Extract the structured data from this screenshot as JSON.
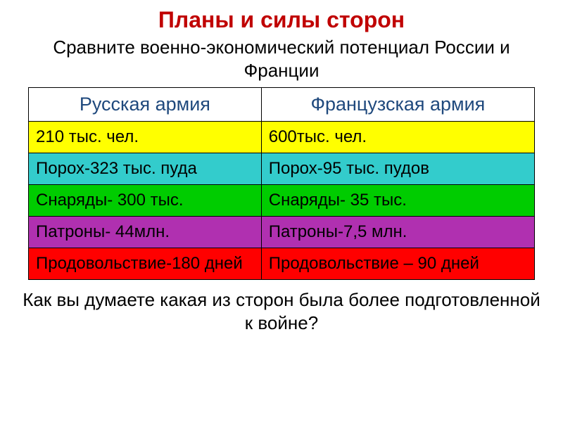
{
  "title": {
    "text": "Планы и силы сторон",
    "color": "#c00000",
    "fontsize": 32
  },
  "subtitle": {
    "text": "Сравните военно-экономический потенциал России и Франции",
    "color": "#000000",
    "fontsize": 26
  },
  "table": {
    "type": "table",
    "columns": 2,
    "col_widths": [
      "46%",
      "54%"
    ],
    "cell_fontsize": 24,
    "header_fontsize": 27,
    "header_color": "#1f497d",
    "border_color": "#000000",
    "rows": [
      {
        "bg": "#ffffff",
        "cells": [
          "Русская армия",
          "Французская армия"
        ],
        "is_header": true
      },
      {
        "bg": "#ffff00",
        "cells": [
          "210 тыс. чел.",
          "600тыс. чел."
        ]
      },
      {
        "bg": "#33cccc",
        "cells": [
          "Порох-323 тыс. пуда",
          "Порох-95 тыс. пудов"
        ]
      },
      {
        "bg": "#00cc00",
        "cells": [
          "Снаряды- 300 тыс.",
          "Снаряды- 35 тыс."
        ]
      },
      {
        "bg": "#b030b0",
        "cells": [
          "Патроны- 44млн.",
          "Патроны-7,5 млн."
        ]
      },
      {
        "bg": "#ff0000",
        "cells": [
          "Продовольствие-180 дней",
          "Продовольствие – 90 дней"
        ]
      }
    ]
  },
  "question": {
    "text": "Как вы думаете какая из сторон была более подготовленной к войне?",
    "color": "#000000",
    "fontsize": 26
  }
}
